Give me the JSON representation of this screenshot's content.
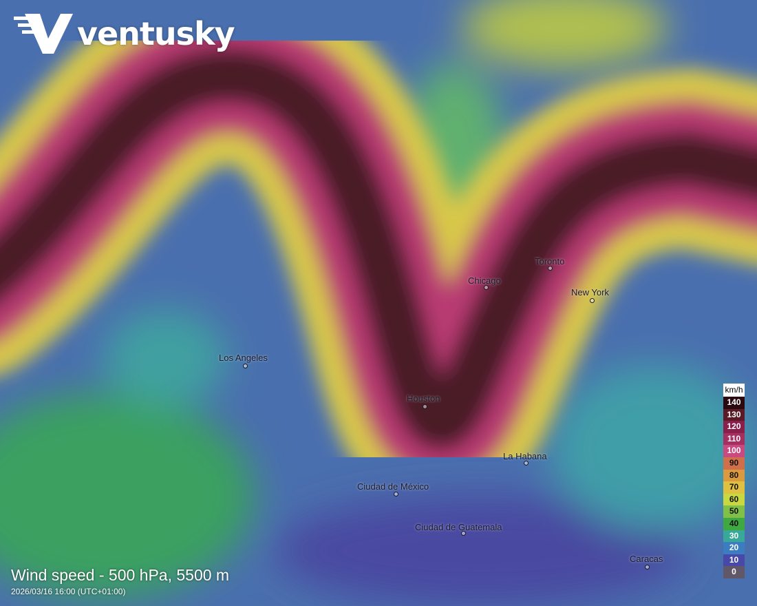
{
  "brand": {
    "name": "ventusky"
  },
  "layer": {
    "title": "Wind speed - 500 hPa, 5500 m",
    "datetime": "2026/03/16 16:00 (UTC+01:00)"
  },
  "cities": [
    {
      "name": "Los Angeles"
    },
    {
      "name": "Chicago"
    },
    {
      "name": "Toronto"
    },
    {
      "name": "New York"
    },
    {
      "name": "Houston"
    },
    {
      "name": "La Habana"
    },
    {
      "name": "Ciudad de México"
    },
    {
      "name": "Ciudad de  Guatemala"
    },
    {
      "name": "Caracas"
    }
  ],
  "legend": {
    "unit": "km/h",
    "steps": [
      {
        "value": "140",
        "color": "#2a0a10",
        "text": "#fff"
      },
      {
        "value": "130",
        "color": "#5a1a26",
        "text": "#fff"
      },
      {
        "value": "120",
        "color": "#8a1f4c",
        "text": "#fff"
      },
      {
        "value": "110",
        "color": "#a62f62",
        "text": "#fff"
      },
      {
        "value": "100",
        "color": "#c94a80",
        "text": "#fff"
      },
      {
        "value": "90",
        "color": "#d0704a",
        "text": "#111"
      },
      {
        "value": "80",
        "color": "#dc9a40",
        "text": "#111"
      },
      {
        "value": "70",
        "color": "#e0c040",
        "text": "#111"
      },
      {
        "value": "60",
        "color": "#c8d840",
        "text": "#111"
      },
      {
        "value": "50",
        "color": "#80c048",
        "text": "#111"
      },
      {
        "value": "40",
        "color": "#40a840",
        "text": "#111"
      },
      {
        "value": "30",
        "color": "#38a898",
        "text": "#fff"
      },
      {
        "value": "20",
        "color": "#3c7cc0",
        "text": "#fff"
      },
      {
        "value": "10",
        "color": "#4848a8",
        "text": "#fff"
      },
      {
        "value": "0",
        "color": "#605868",
        "text": "#fff"
      }
    ]
  }
}
